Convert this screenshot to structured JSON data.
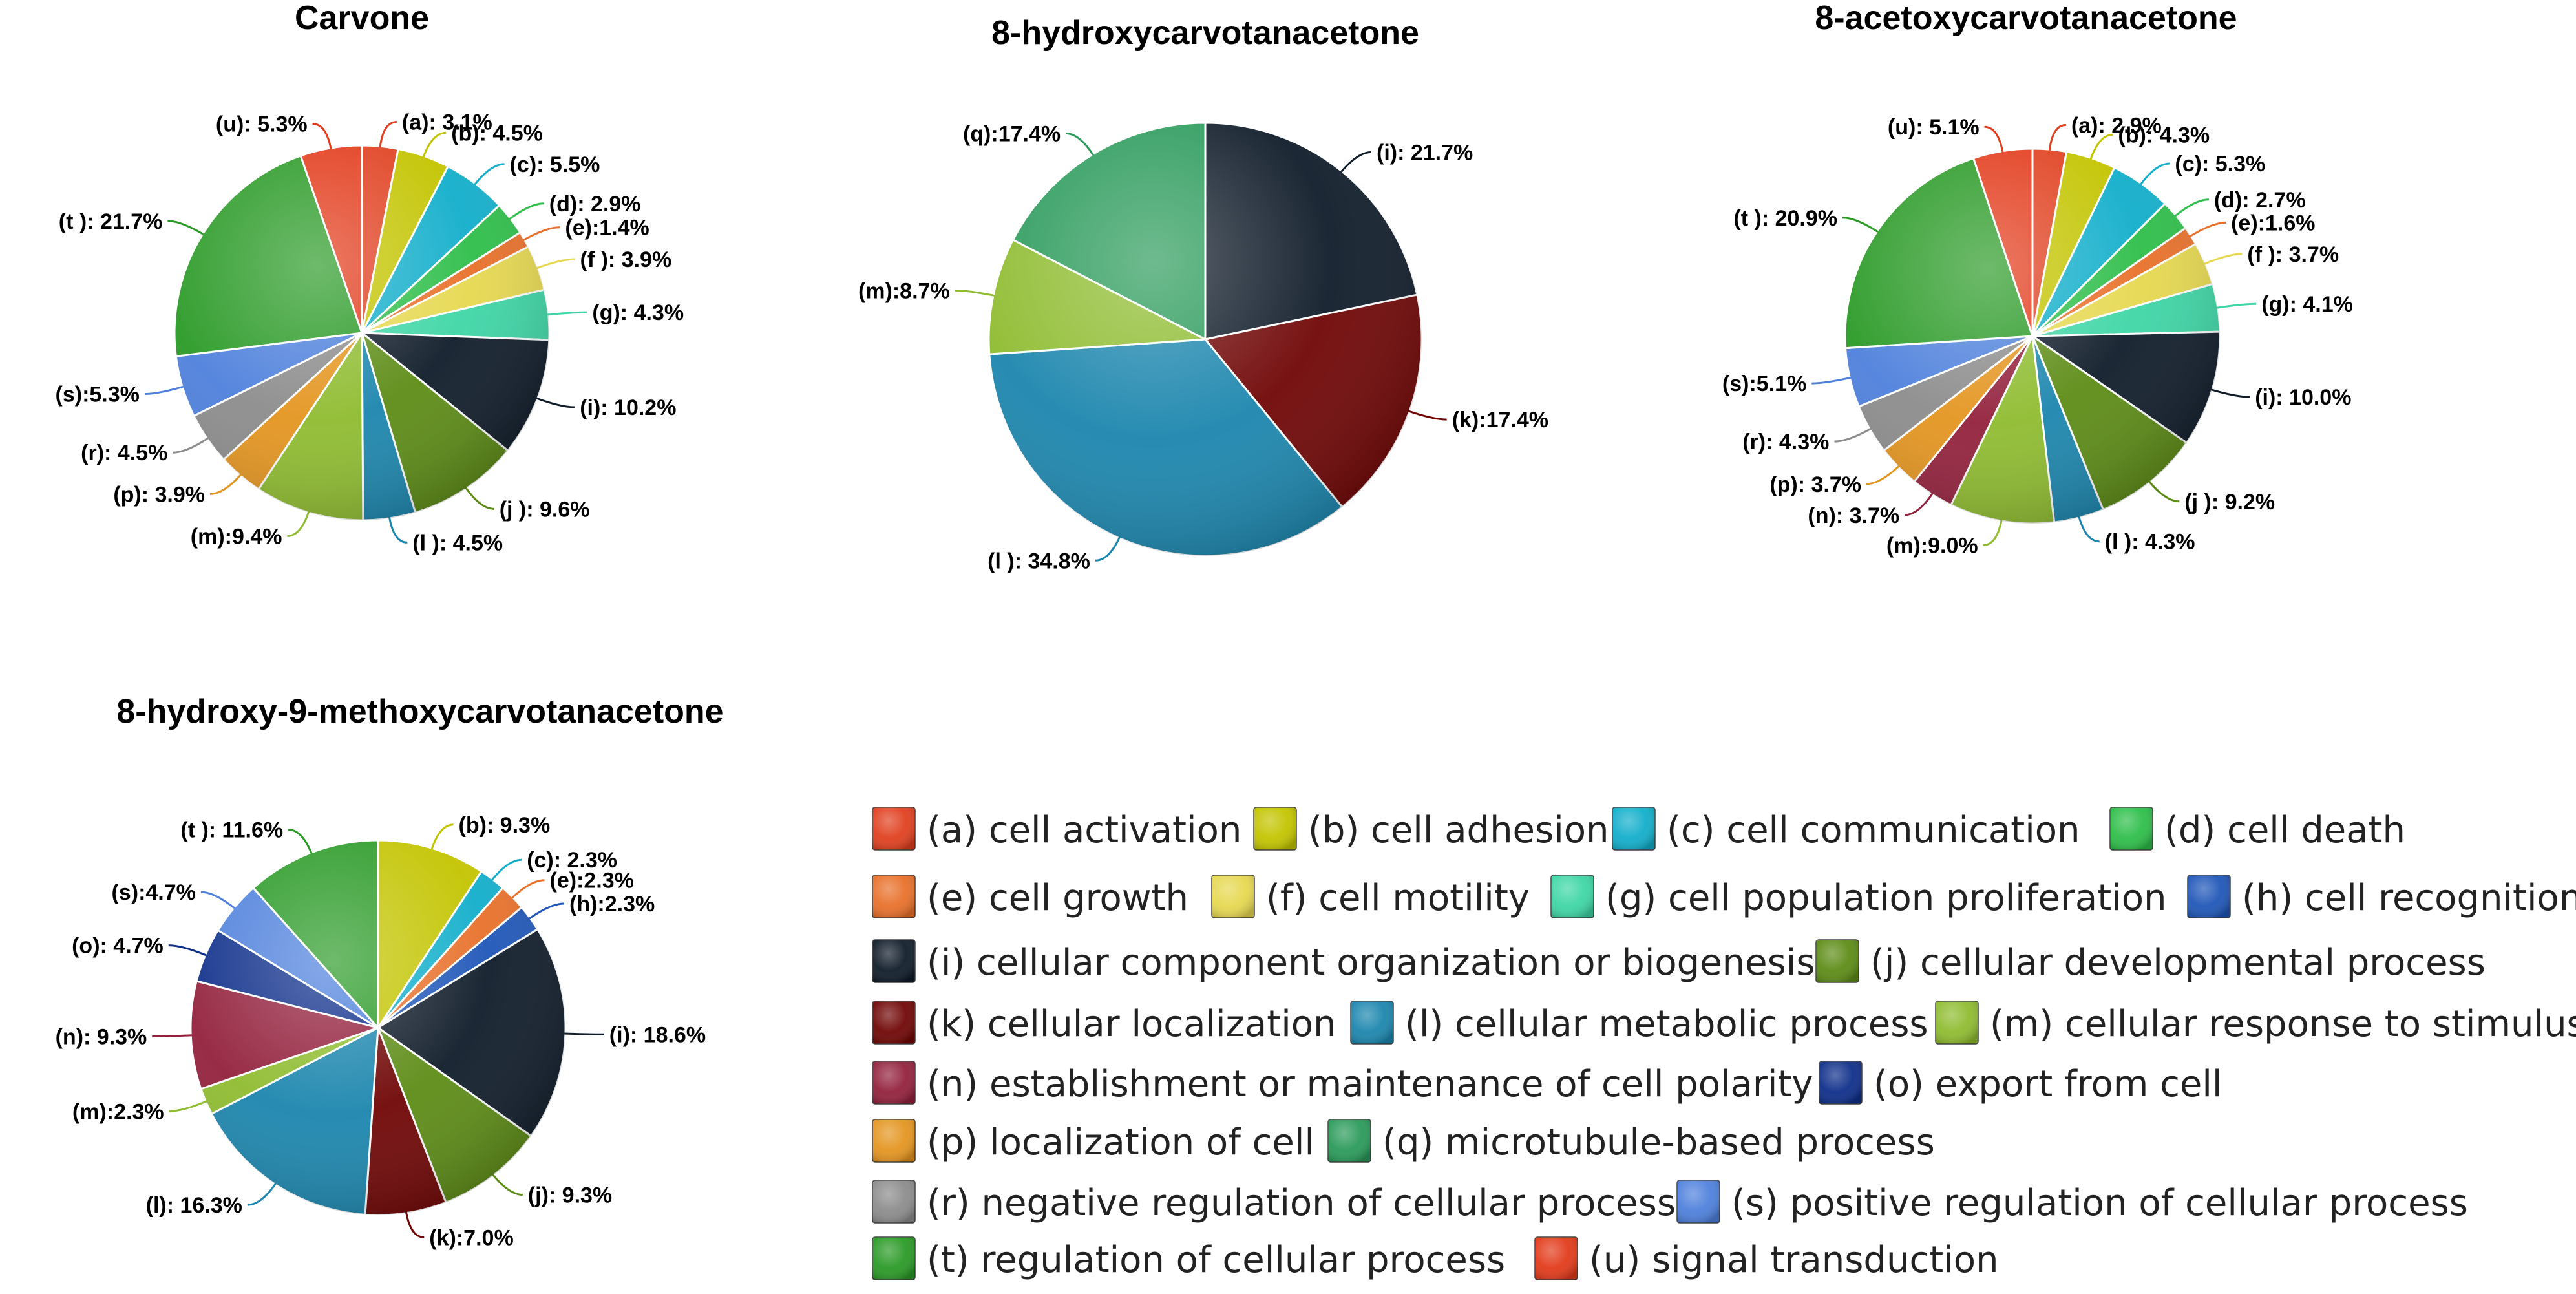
{
  "legend": [
    {
      "code": "a",
      "text": "(a) cell activation",
      "color": "#e0401f"
    },
    {
      "code": "b",
      "text": "(b) cell adhesion",
      "color": "#c3c400"
    },
    {
      "code": "c",
      "text": "(c) cell communication",
      "color": "#12aecb"
    },
    {
      "code": "d",
      "text": "(d) cell death",
      "color": "#2ebe4a"
    },
    {
      "code": "e",
      "text": "(e) cell growth",
      "color": "#e8702a"
    },
    {
      "code": "f",
      "text": "(f) cell motility",
      "color": "#e6d850"
    },
    {
      "code": "g",
      "text": "(g) cell population proliferation",
      "color": "#3ed6a6"
    },
    {
      "code": "h",
      "text": "(h) cell recognition",
      "color": "#1f56b8"
    },
    {
      "code": "i",
      "text": "(i) cellular component organization or biogenesis",
      "color": "#101c2a"
    },
    {
      "code": "j",
      "text": "(j) cellular developmental process",
      "color": "#5d8c16"
    },
    {
      "code": "k",
      "text": "(k) cellular localization",
      "color": "#700606"
    },
    {
      "code": "l",
      "text": "(l) cellular metabolic process",
      "color": "#1c86ae"
    },
    {
      "code": "m",
      "text": "(m) cellular response to stimulus",
      "color": "#8fbc30"
    },
    {
      "code": "n",
      "text": "(n) establishment or maintenance of cell polarity",
      "color": "#93213d"
    },
    {
      "code": "o",
      "text": "(o) export from cell",
      "color": "#0e2e8a"
    },
    {
      "code": "p",
      "text": "(p) localization of cell",
      "color": "#e49520"
    },
    {
      "code": "q",
      "text": "(q) microtubule-based process",
      "color": "#2a9a5a"
    },
    {
      "code": "r",
      "text": "(r) negative regulation of cellular process",
      "color": "#8c8c8c"
    },
    {
      "code": "s",
      "text": "(s) positive regulation of cellular process",
      "color": "#4e80dc"
    },
    {
      "code": "t",
      "text": "(t) regulation of cellular process",
      "color": "#2a9a26"
    },
    {
      "code": "u",
      "text": "(u) signal transduction",
      "color": "#e23a1a"
    }
  ],
  "chart_data": [
    {
      "type": "pie",
      "title": "Carvone",
      "slices": [
        {
          "code": "a",
          "value": 3.1,
          "label": "(a): 3.1%"
        },
        {
          "code": "b",
          "value": 4.5,
          "label": "(b): 4.5%"
        },
        {
          "code": "c",
          "value": 5.5,
          "label": "(c): 5.5%"
        },
        {
          "code": "d",
          "value": 2.9,
          "label": "(d): 2.9%"
        },
        {
          "code": "e",
          "value": 1.4,
          "label": "(e):1.4%"
        },
        {
          "code": "f",
          "value": 3.9,
          "label": "(f ): 3.9%"
        },
        {
          "code": "g",
          "value": 4.3,
          "label": "(g): 4.3%"
        },
        {
          "code": "i",
          "value": 10.2,
          "label": "(i): 10.2%"
        },
        {
          "code": "j",
          "value": 9.6,
          "label": "(j ): 9.6%"
        },
        {
          "code": "l",
          "value": 4.5,
          "label": "(l ): 4.5%"
        },
        {
          "code": "m",
          "value": 9.4,
          "label": "(m):9.4%"
        },
        {
          "code": "p",
          "value": 3.9,
          "label": "(p): 3.9%"
        },
        {
          "code": "r",
          "value": 4.5,
          "label": "(r): 4.5%"
        },
        {
          "code": "s",
          "value": 5.3,
          "label": "(s):5.3%"
        },
        {
          "code": "t",
          "value": 21.7,
          "label": "(t ): 21.7%"
        },
        {
          "code": "u",
          "value": 5.3,
          "label": "(u): 5.3%"
        }
      ]
    },
    {
      "type": "pie",
      "title": "8-hydroxycarvotanacetone",
      "slices": [
        {
          "code": "i",
          "value": 21.7,
          "label": "(i): 21.7%"
        },
        {
          "code": "k",
          "value": 17.4,
          "label": "(k):17.4%"
        },
        {
          "code": "l",
          "value": 34.8,
          "label": "(l ): 34.8%"
        },
        {
          "code": "m",
          "value": 8.7,
          "label": "(m):8.7%"
        },
        {
          "code": "q",
          "value": 17.4,
          "label": "(q):17.4%"
        }
      ]
    },
    {
      "type": "pie",
      "title": "8-acetoxycarvotanacetone",
      "slices": [
        {
          "code": "a",
          "value": 2.9,
          "label": "(a): 2.9%"
        },
        {
          "code": "b",
          "value": 4.3,
          "label": "(b): 4.3%"
        },
        {
          "code": "c",
          "value": 5.3,
          "label": "(c): 5.3%"
        },
        {
          "code": "d",
          "value": 2.7,
          "label": "(d): 2.7%"
        },
        {
          "code": "e",
          "value": 1.6,
          "label": "(e):1.6%"
        },
        {
          "code": "f",
          "value": 3.7,
          "label": "(f ): 3.7%"
        },
        {
          "code": "g",
          "value": 4.1,
          "label": "(g): 4.1%"
        },
        {
          "code": "i",
          "value": 10.0,
          "label": "(i): 10.0%"
        },
        {
          "code": "j",
          "value": 9.2,
          "label": "(j ): 9.2%"
        },
        {
          "code": "l",
          "value": 4.3,
          "label": "(l ): 4.3%"
        },
        {
          "code": "m",
          "value": 9.0,
          "label": "(m):9.0%"
        },
        {
          "code": "n",
          "value": 3.7,
          "label": "(n): 3.7%"
        },
        {
          "code": "p",
          "value": 3.7,
          "label": "(p): 3.7%"
        },
        {
          "code": "r",
          "value": 4.3,
          "label": "(r): 4.3%"
        },
        {
          "code": "s",
          "value": 5.1,
          "label": "(s):5.1%"
        },
        {
          "code": "t",
          "value": 20.9,
          "label": "(t ): 20.9%"
        },
        {
          "code": "u",
          "value": 5.1,
          "label": "(u): 5.1%"
        }
      ]
    },
    {
      "type": "pie",
      "title": "8-hydroxy-9-methoxycarvotanacetone",
      "slices": [
        {
          "code": "b",
          "value": 9.3,
          "label": "(b): 9.3%"
        },
        {
          "code": "c",
          "value": 2.3,
          "label": "(c): 2.3%"
        },
        {
          "code": "e",
          "value": 2.3,
          "label": "(e):2.3%"
        },
        {
          "code": "h",
          "value": 2.3,
          "label": "(h):2.3%"
        },
        {
          "code": "i",
          "value": 18.6,
          "label": "(i): 18.6%"
        },
        {
          "code": "j",
          "value": 9.3,
          "label": "(j): 9.3%"
        },
        {
          "code": "k",
          "value": 7.0,
          "label": "(k):7.0%"
        },
        {
          "code": "l",
          "value": 16.3,
          "label": "(l): 16.3%"
        },
        {
          "code": "m",
          "value": 2.3,
          "label": "(m):2.3%"
        },
        {
          "code": "n",
          "value": 9.3,
          "label": "(n): 9.3%"
        },
        {
          "code": "o",
          "value": 4.7,
          "label": "(o): 4.7%"
        },
        {
          "code": "s",
          "value": 4.7,
          "label": "(s):4.7%"
        },
        {
          "code": "t",
          "value": 11.6,
          "label": "(t ): 11.6%"
        }
      ]
    }
  ]
}
